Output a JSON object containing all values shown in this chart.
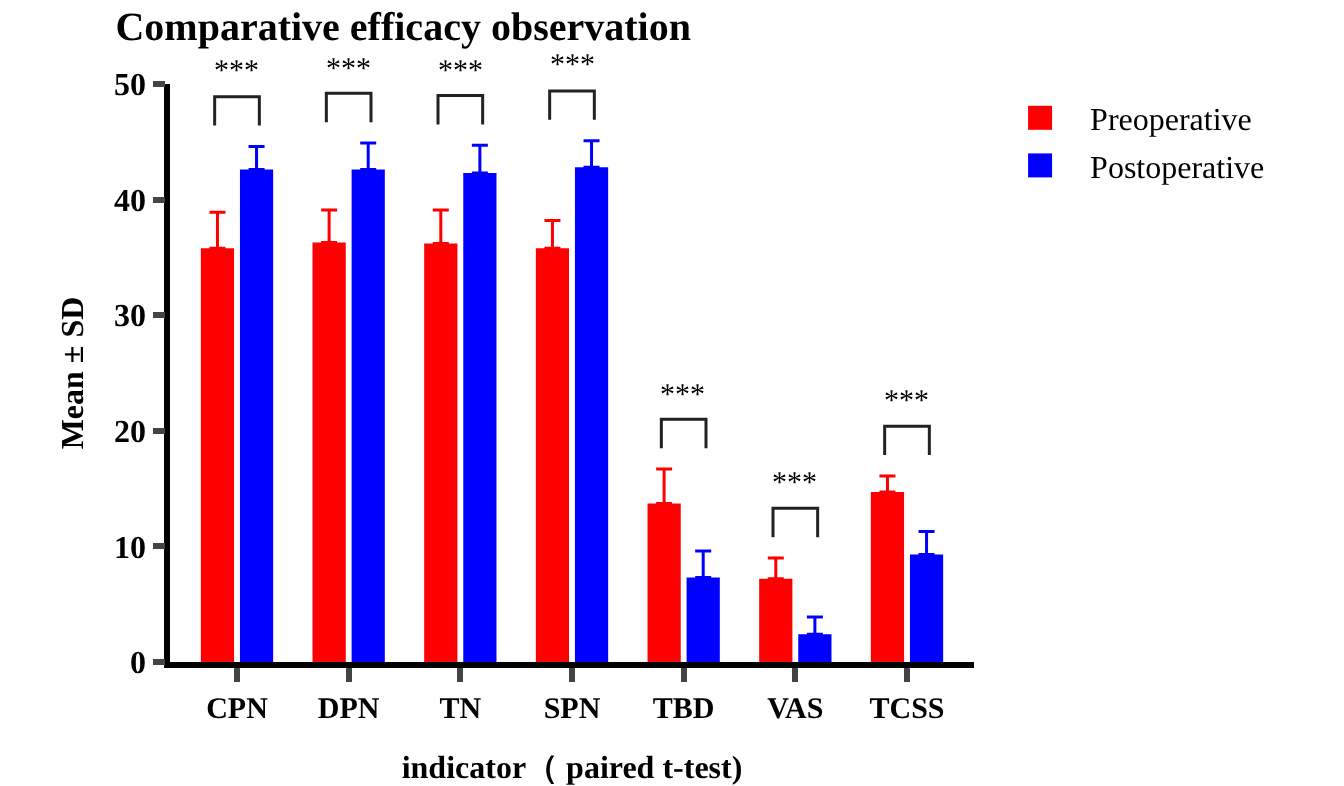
{
  "chart_data": {
    "type": "bar",
    "title": "Comparative efficacy observation",
    "xlabel": "indicator（ paired t-test)",
    "ylabel": "Mean ± SD",
    "categories": [
      "CPN",
      "DPN",
      "TN",
      "SPN",
      "TBD",
      "VAS",
      "TCSS"
    ],
    "series": [
      {
        "name": "Preoperative",
        "color": "#ff0000",
        "values": [
          35.8,
          36.3,
          36.2,
          35.8,
          13.7,
          7.2,
          14.7
        ],
        "errors": [
          [
            35.8,
            38.9
          ],
          [
            36.3,
            39.1
          ],
          [
            36.2,
            39.1
          ],
          [
            35.8,
            38.2
          ],
          [
            13.7,
            16.7
          ],
          [
            7.2,
            9.0
          ],
          [
            14.7,
            16.1
          ]
        ]
      },
      {
        "name": "Postoperative",
        "color": "#0000ff",
        "values": [
          42.6,
          42.6,
          42.3,
          42.8,
          7.3,
          2.4,
          9.3
        ],
        "errors": [
          [
            42.6,
            44.6
          ],
          [
            42.6,
            44.9
          ],
          [
            42.3,
            44.7
          ],
          [
            42.8,
            45.1
          ],
          [
            7.3,
            9.6
          ],
          [
            2.4,
            3.9
          ],
          [
            9.3,
            11.3
          ]
        ]
      }
    ],
    "annotations": [
      "***",
      "***",
      "***",
      "***",
      "***",
      "***",
      "***"
    ],
    "ylim": [
      0,
      50
    ],
    "yticks": [
      0,
      10,
      20,
      30,
      40,
      50
    ],
    "grid": false,
    "legend": "top right"
  }
}
